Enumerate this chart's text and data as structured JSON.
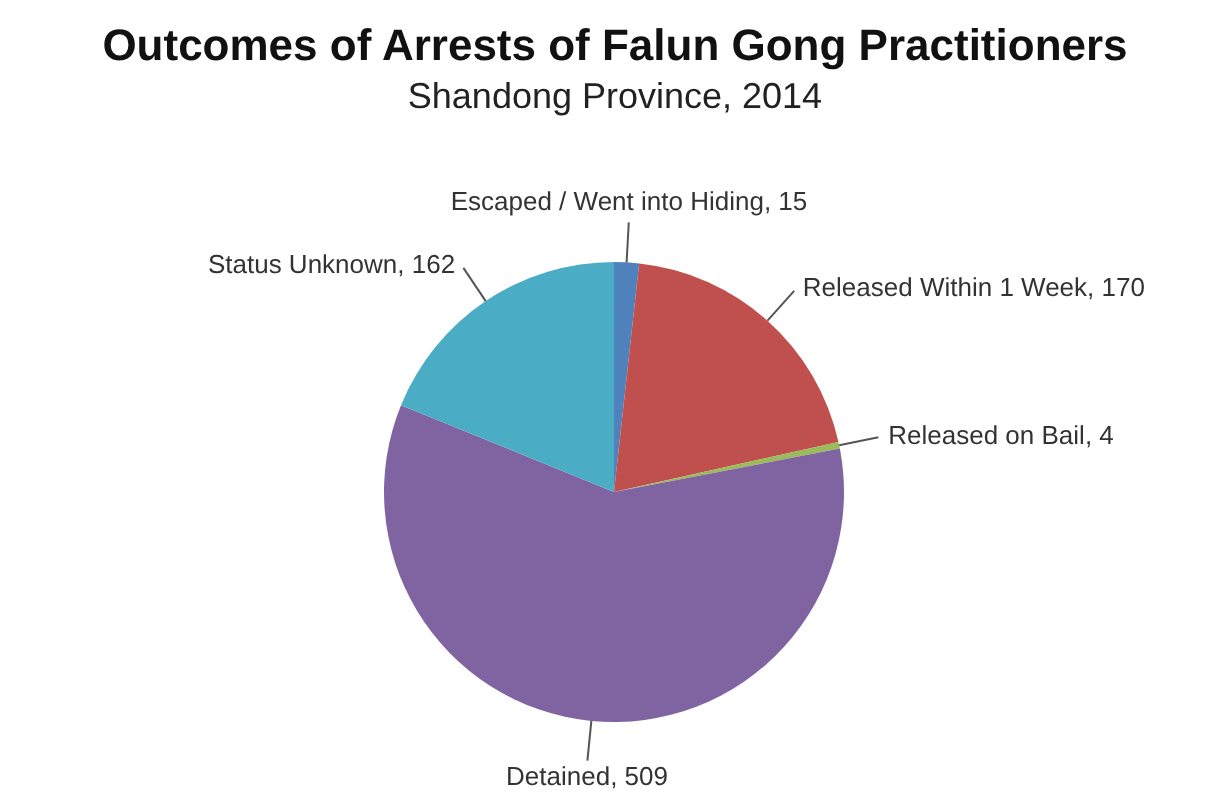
{
  "chart_data": {
    "type": "pie",
    "title": "Outcomes of Arrests of Falun Gong Practitioners",
    "subtitle": "Shandong Province, 2014",
    "categories": [
      "Escaped / Went into Hiding",
      "Released Within 1 Week",
      "Released on Bail",
      "Detained",
      "Status Unknown"
    ],
    "values": [
      15,
      170,
      4,
      509,
      162
    ],
    "colors": [
      "#4f81bd",
      "#c0504d",
      "#9bbb59",
      "#8064a2",
      "#4bacc6"
    ],
    "value_labels": [
      ", 15",
      ", 170",
      ", 4",
      ", 509",
      ", 162"
    ],
    "legend": false
  }
}
